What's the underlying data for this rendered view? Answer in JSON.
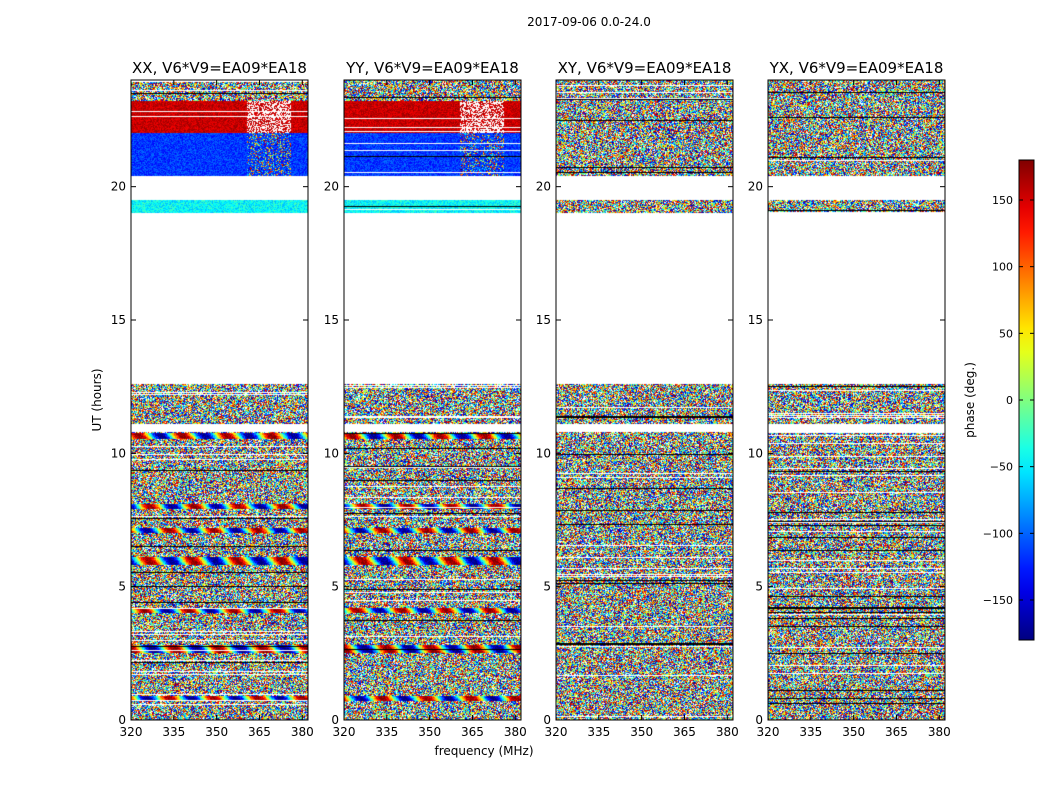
{
  "chart_data": {
    "type": "heatmap",
    "suptitle": "2017-09-06 0.0-24.0",
    "xlabel": "frequency (MHz)",
    "ylabel": "UT (hours)",
    "xlim": [
      320,
      382
    ],
    "ylim": [
      0,
      24
    ],
    "xticks": [
      320,
      335,
      350,
      365,
      380
    ],
    "yticks": [
      0,
      5,
      10,
      15,
      20
    ],
    "colorbar": {
      "label": "phase (deg.)",
      "range": [
        -180,
        180
      ],
      "ticks": [
        -150,
        -100,
        -50,
        0,
        50,
        100,
        150
      ],
      "tick_labels": [
        "−150",
        "−100",
        "−50",
        "0",
        "50",
        "100",
        "150"
      ],
      "colormap": "jet"
    },
    "panels": [
      {
        "title": "XX, V6*V9=EA09*EA18",
        "correlation": "parallel"
      },
      {
        "title": "YY, V6*V9=EA09*EA18",
        "correlation": "parallel"
      },
      {
        "title": "XY, V6*V9=EA09*EA18",
        "correlation": "cross"
      },
      {
        "title": "YX, V6*V9=EA09*EA18",
        "correlation": "cross"
      }
    ],
    "data_hours": [
      [
        0.0,
        12.6
      ],
      [
        19.0,
        19.5
      ],
      [
        20.4,
        24.0
      ]
    ],
    "blank_hours": [
      [
        12.6,
        19.0
      ],
      [
        19.5,
        20.4
      ],
      [
        10.8,
        11.1
      ]
    ]
  },
  "colors": {
    "axis": "#000000",
    "background": "#ffffff"
  }
}
